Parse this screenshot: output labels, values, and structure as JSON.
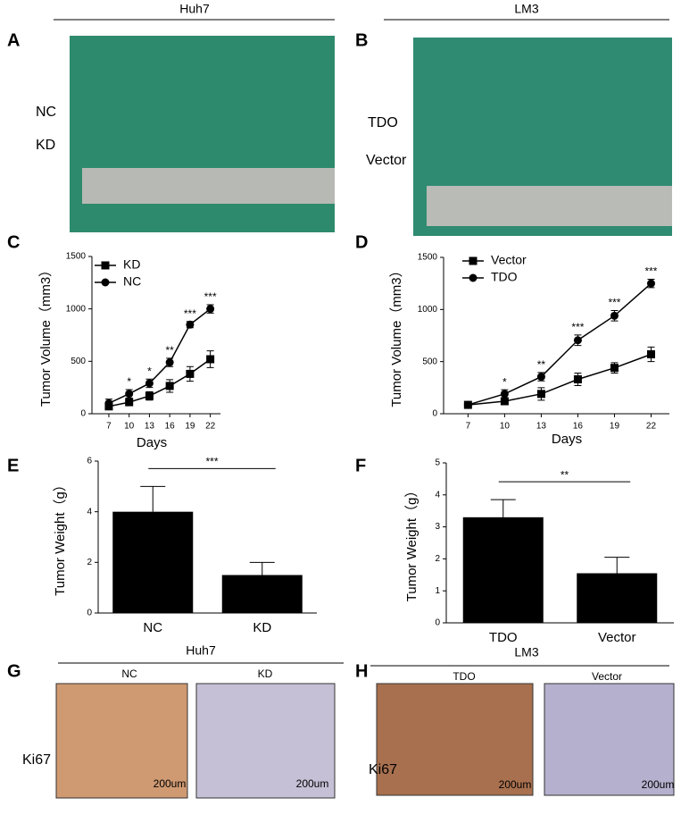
{
  "chart_data": [
    {
      "type": "line",
      "panel": "C",
      "xlabel": "Days",
      "ylabel": "Tumor Volume（mm3）",
      "x": [
        7,
        10,
        13,
        16,
        19,
        22
      ],
      "xlim": [
        4.5,
        23.5
      ],
      "xticks": [
        7,
        10,
        13,
        16,
        19,
        22
      ],
      "ylim": [
        0,
        1500
      ],
      "yticks": [
        0,
        500,
        1000,
        1500
      ],
      "series": [
        {
          "name": "KD",
          "marker": "square",
          "color": "#000000",
          "values": [
            70,
            110,
            170,
            265,
            380,
            520
          ],
          "errors": [
            30,
            30,
            40,
            60,
            70,
            80
          ]
        },
        {
          "name": "NC",
          "marker": "circle",
          "color": "#000000",
          "values": [
            100,
            190,
            290,
            490,
            850,
            1000
          ],
          "errors": [
            40,
            40,
            40,
            40,
            30,
            40
          ]
        }
      ],
      "significance": [
        null,
        "*",
        "*",
        "**",
        "***",
        "***"
      ]
    },
    {
      "type": "line",
      "panel": "D",
      "xlabel": "Days",
      "ylabel": "Tumor Volume（mm3）",
      "x": [
        7,
        10,
        13,
        16,
        19,
        22
      ],
      "xlim": [
        5,
        23.5
      ],
      "xticks": [
        7,
        10,
        13,
        16,
        19,
        22
      ],
      "ylim": [
        0,
        1500
      ],
      "yticks": [
        0,
        500,
        1000,
        1500
      ],
      "series": [
        {
          "name": "Vector",
          "marker": "square",
          "color": "#000000",
          "values": [
            85,
            120,
            190,
            330,
            440,
            570
          ],
          "errors": [
            20,
            30,
            60,
            60,
            50,
            70
          ]
        },
        {
          "name": "TDO",
          "marker": "circle",
          "color": "#000000",
          "values": [
            85,
            190,
            355,
            705,
            940,
            1250
          ],
          "errors": [
            20,
            40,
            40,
            50,
            50,
            40
          ]
        }
      ],
      "significance": [
        null,
        "*",
        "**",
        "***",
        "***",
        "***"
      ]
    },
    {
      "type": "bar",
      "panel": "E",
      "ylabel": "Tumor Weight（g）",
      "categories": [
        "NC",
        "KD"
      ],
      "values": [
        4,
        1.5
      ],
      "errors": [
        1,
        0.5
      ],
      "color": "#000000",
      "ylim": [
        0,
        6
      ],
      "yticks": [
        0,
        2,
        4,
        6
      ],
      "significance": "***"
    },
    {
      "type": "bar",
      "panel": "F",
      "ylabel": "Tumor Weight（g）",
      "categories": [
        "TDO",
        "Vector"
      ],
      "values": [
        3.3,
        1.55
      ],
      "errors": [
        0.55,
        0.5
      ],
      "color": "#000000",
      "ylim": [
        0,
        5
      ],
      "yticks": [
        0,
        1,
        2,
        3,
        4,
        5
      ],
      "significance": "**"
    }
  ],
  "photos": {
    "A": {
      "panel": "A",
      "header": "Huh7",
      "rows": [
        "NC",
        "KD"
      ]
    },
    "B": {
      "panel": "B",
      "header": "LM3",
      "rows": [
        "TDO",
        "Vector"
      ]
    },
    "G": {
      "panel": "G",
      "header": "Huh7",
      "columns": [
        "NC",
        "KD"
      ],
      "stain": "Ki67",
      "scale": [
        "200um",
        "200um"
      ]
    },
    "H": {
      "panel": "H",
      "header": "LM3",
      "columns": [
        "TDO",
        "Vector"
      ],
      "stain": "Ki67",
      "scale": [
        "200um",
        "200um"
      ]
    }
  }
}
